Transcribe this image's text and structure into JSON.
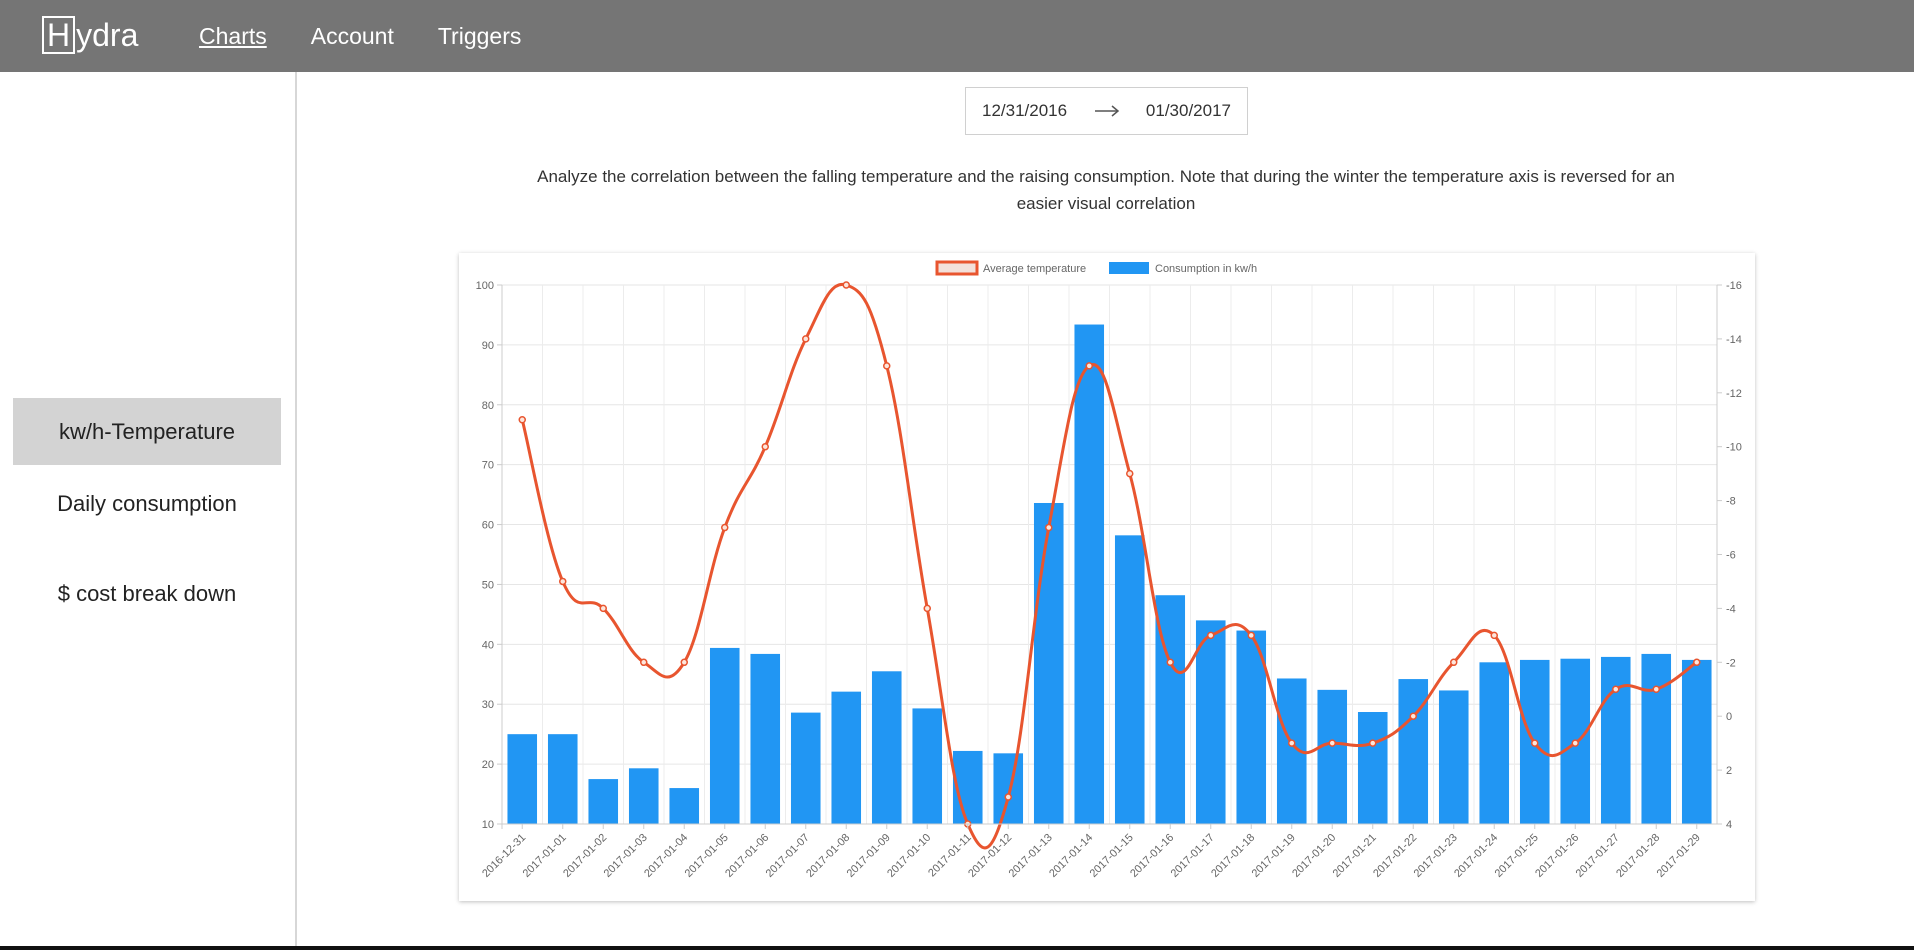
{
  "header": {
    "logo_initial": "H",
    "logo_rest": "ydra",
    "nav": [
      "Charts",
      "Account",
      "Triggers"
    ]
  },
  "sidebar": {
    "items": [
      "kw/h-Temperature",
      "Daily consumption",
      "$ cost break down"
    ]
  },
  "date_range": {
    "start": "12/31/2016",
    "end": "01/30/2017"
  },
  "description": "Analyze the correlation between the falling temperature and the raising consumption. Note that during the winter the temperature axis is reversed for an easier visual correlation",
  "colors": {
    "line": "#e8552f",
    "bar": "#2196f3",
    "header": "#757575",
    "active_sidebar": "#d3d3d3"
  },
  "icons": {
    "date_separator": "arrow-right-icon"
  },
  "chart_data": {
    "type": "bar",
    "categories": [
      "2016-12-31",
      "2017-01-01",
      "2017-01-02",
      "2017-01-03",
      "2017-01-04",
      "2017-01-05",
      "2017-01-06",
      "2017-01-07",
      "2017-01-08",
      "2017-01-09",
      "2017-01-10",
      "2017-01-11",
      "2017-01-12",
      "2017-01-13",
      "2017-01-14",
      "2017-01-15",
      "2017-01-16",
      "2017-01-17",
      "2017-01-18",
      "2017-01-19",
      "2017-01-20",
      "2017-01-21",
      "2017-01-22",
      "2017-01-23",
      "2017-01-24",
      "2017-01-25",
      "2017-01-26",
      "2017-01-27",
      "2017-01-28",
      "2017-01-29"
    ],
    "series": [
      {
        "name": "Average temperature",
        "type": "line",
        "axis": "right",
        "values": [
          -11,
          -5,
          -4,
          -2,
          -2,
          -7,
          -10,
          -14,
          -16,
          -13,
          -4,
          4,
          3,
          -7,
          -13,
          -9,
          -2,
          -3,
          -3,
          1,
          1,
          1,
          0,
          -2,
          -3,
          1,
          1,
          -1,
          -1,
          -2
        ]
      },
      {
        "name": "Consumption in kw/h",
        "type": "bar",
        "axis": "left",
        "values": [
          25,
          25,
          17.5,
          19.3,
          16,
          39.4,
          38.4,
          28.6,
          32.1,
          35.5,
          29.3,
          22.2,
          21.8,
          63.6,
          93.4,
          58.2,
          48.2,
          44,
          42.3,
          34.3,
          32.4,
          28.7,
          34.2,
          32.3,
          37,
          37.4,
          37.6,
          37.9,
          38.4,
          37.4
        ]
      }
    ],
    "y_left": {
      "ticks": [
        "10",
        "20",
        "30",
        "40",
        "50",
        "60",
        "70",
        "80",
        "90",
        "100"
      ],
      "range": [
        10,
        100
      ]
    },
    "y_right": {
      "ticks": [
        "4",
        "2",
        "0",
        "-2",
        "-4",
        "-6",
        "-8",
        "-10",
        "-12",
        "-14",
        "-16"
      ],
      "range": [
        4,
        -16
      ],
      "reversed": true
    },
    "legend_position": "top-center",
    "grid": true
  }
}
